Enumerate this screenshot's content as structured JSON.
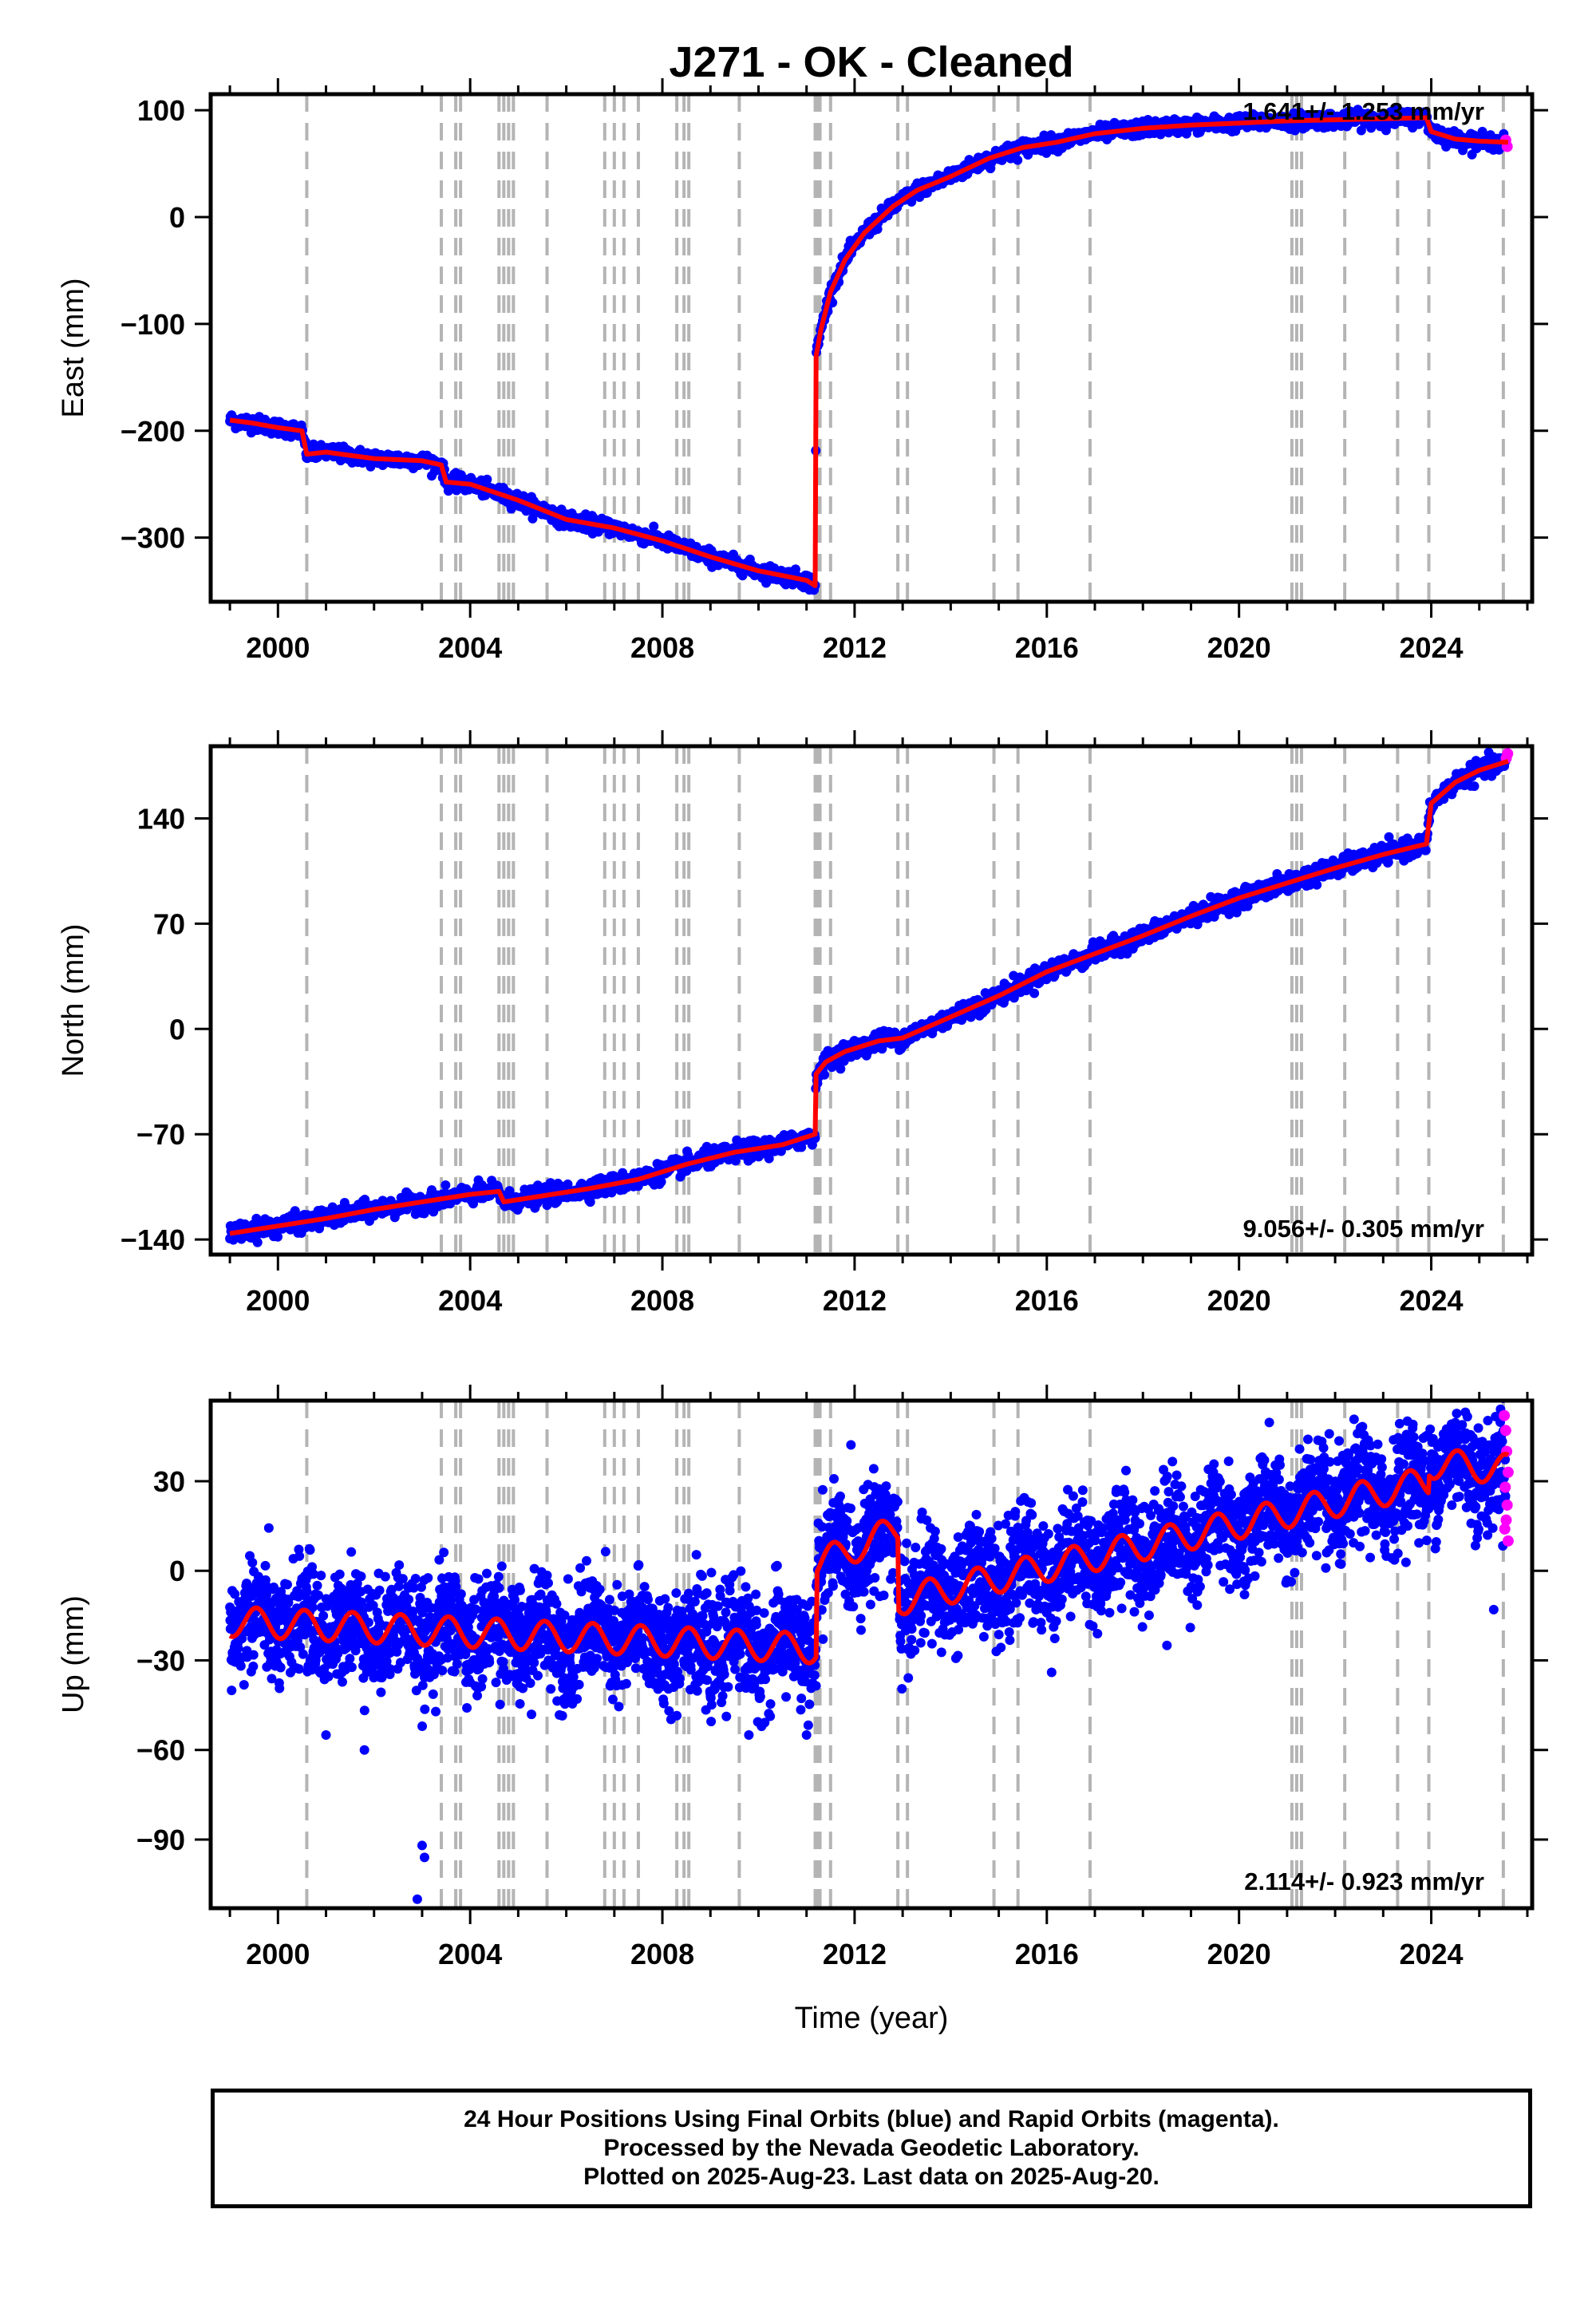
{
  "title": "J271  - OK - Cleaned",
  "footer": {
    "line1": "24 Hour Positions Using Final Orbits (blue) and Rapid Orbits (magenta).",
    "line2": "Processed by the Nevada Geodetic Laboratory.",
    "line3": "Plotted on 2025-Aug-23. Last data on 2025-Aug-20."
  },
  "colors": {
    "final": "#0000ff",
    "rapid": "#ff00ff",
    "model": "#ff0000",
    "event_lines": "#b4b4b4"
  },
  "chart_data": [
    {
      "type": "scatter",
      "panel": "east",
      "title": "",
      "xlabel": "",
      "ylabel": "East (mm)",
      "rate_text": "1.641+/- 1.253 mm/yr",
      "xlim": [
        1998.6,
        2026.1
      ],
      "ylim": [
        -360,
        115
      ],
      "xticks": [
        2000,
        2004,
        2008,
        2012,
        2016,
        2020,
        2024
      ],
      "yticks": [
        -300,
        -200,
        -100,
        0,
        100
      ],
      "event_lines": [
        2000.6,
        2003.4,
        2003.7,
        2003.8,
        2004.6,
        2004.7,
        2004.8,
        2004.9,
        2005.6,
        2006.8,
        2007.0,
        2007.2,
        2007.5,
        2008.3,
        2008.45,
        2008.55,
        2009.6,
        2011.18,
        2011.22,
        2011.28,
        2011.5,
        2012.9,
        2013.1,
        2014.9,
        2015.4,
        2016.9,
        2021.1,
        2021.2,
        2021.3,
        2022.2,
        2023.3,
        2023.95,
        2025.5
      ],
      "series": [
        {
          "points": [
            [
              1999.0,
              -190
            ],
            [
              1999.5,
              -193
            ],
            [
              2000.0,
              -197
            ],
            [
              2000.5,
              -200
            ],
            [
              2000.6,
              -222
            ],
            [
              2001.0,
              -220
            ],
            [
              2002.0,
              -226
            ],
            [
              2003.0,
              -228
            ],
            [
              2003.4,
              -232
            ],
            [
              2003.5,
              -248
            ],
            [
              2004.0,
              -250
            ],
            [
              2005.0,
              -265
            ],
            [
              2006.0,
              -283
            ],
            [
              2007.0,
              -291
            ],
            [
              2008.0,
              -303
            ],
            [
              2009.0,
              -318
            ],
            [
              2010.0,
              -331
            ],
            [
              2011.0,
              -340
            ],
            [
              2011.18,
              -345
            ],
            [
              2011.2,
              -130
            ],
            [
              2011.3,
              -105
            ],
            [
              2011.5,
              -70
            ],
            [
              2011.8,
              -40
            ],
            [
              2012.2,
              -15
            ],
            [
              2012.8,
              10
            ],
            [
              2013.3,
              25
            ],
            [
              2014.0,
              38
            ],
            [
              2014.8,
              55
            ],
            [
              2015.5,
              65
            ],
            [
              2016.2,
              70
            ],
            [
              2017.0,
              78
            ],
            [
              2018.0,
              83
            ],
            [
              2019.0,
              86
            ],
            [
              2020.0,
              88
            ],
            [
              2021.0,
              90
            ],
            [
              2022.0,
              91
            ],
            [
              2023.0,
              92
            ],
            [
              2023.9,
              93
            ],
            [
              2024.0,
              80
            ],
            [
              2024.5,
              73
            ],
            [
              2025.0,
              71
            ],
            [
              2025.6,
              70
            ]
          ]
        }
      ],
      "rapid_points": [
        [
          2025.55,
          72
        ],
        [
          2025.58,
          66
        ]
      ]
    },
    {
      "type": "scatter",
      "panel": "north",
      "title": "",
      "xlabel": "",
      "ylabel": "North (mm)",
      "rate_text": "9.056+/- 0.305 mm/yr",
      "xlim": [
        1998.6,
        2026.1
      ],
      "ylim": [
        -150,
        188
      ],
      "xticks": [
        2000,
        2004,
        2008,
        2012,
        2016,
        2020,
        2024
      ],
      "yticks": [
        -140,
        -70,
        0,
        70,
        140
      ],
      "event_lines": [
        2000.6,
        2003.4,
        2003.7,
        2003.8,
        2004.6,
        2004.7,
        2004.8,
        2004.9,
        2005.6,
        2006.8,
        2007.0,
        2007.2,
        2007.5,
        2008.3,
        2008.45,
        2008.55,
        2009.6,
        2011.18,
        2011.22,
        2011.28,
        2011.5,
        2012.9,
        2013.1,
        2014.9,
        2015.4,
        2016.9,
        2021.1,
        2021.2,
        2021.3,
        2022.2,
        2023.3,
        2023.95,
        2025.5
      ],
      "series": [
        {
          "points": [
            [
              1999.0,
              -136
            ],
            [
              2000.0,
              -131
            ],
            [
              2001.0,
              -126
            ],
            [
              2002.0,
              -120
            ],
            [
              2003.0,
              -115
            ],
            [
              2004.0,
              -110
            ],
            [
              2004.6,
              -108
            ],
            [
              2004.7,
              -115
            ],
            [
              2005.5,
              -111
            ],
            [
              2006.5,
              -106
            ],
            [
              2007.5,
              -100
            ],
            [
              2008.5,
              -90
            ],
            [
              2009.5,
              -82
            ],
            [
              2010.5,
              -77
            ],
            [
              2011.18,
              -70
            ],
            [
              2011.2,
              -30
            ],
            [
              2011.4,
              -22
            ],
            [
              2011.8,
              -15
            ],
            [
              2012.5,
              -8
            ],
            [
              2013.0,
              -6
            ],
            [
              2014.0,
              8
            ],
            [
              2015.0,
              22
            ],
            [
              2016.0,
              38
            ],
            [
              2017.0,
              50
            ],
            [
              2018.0,
              62
            ],
            [
              2019.0,
              75
            ],
            [
              2020.0,
              87
            ],
            [
              2021.0,
              97
            ],
            [
              2022.0,
              107
            ],
            [
              2023.0,
              116
            ],
            [
              2023.9,
              123
            ],
            [
              2024.0,
              150
            ],
            [
              2024.5,
              164
            ],
            [
              2025.0,
              172
            ],
            [
              2025.6,
              178
            ]
          ]
        }
      ],
      "rapid_points": [
        [
          2025.56,
          180
        ],
        [
          2025.59,
          183
        ]
      ]
    },
    {
      "type": "scatter",
      "panel": "up",
      "title": "",
      "xlabel": "Time (year)",
      "ylabel": "Up (mm)",
      "rate_text": "2.114+/- 0.923 mm/yr",
      "xlim": [
        1998.6,
        2026.1
      ],
      "ylim": [
        -113,
        57
      ],
      "xticks": [
        2000,
        2004,
        2008,
        2012,
        2016,
        2020,
        2024
      ],
      "yticks": [
        -90,
        -60,
        -30,
        0,
        30
      ],
      "event_lines": [
        2000.6,
        2003.4,
        2003.7,
        2003.8,
        2004.6,
        2004.7,
        2004.8,
        2004.9,
        2005.6,
        2006.8,
        2007.0,
        2007.2,
        2007.5,
        2008.3,
        2008.45,
        2008.55,
        2009.6,
        2011.18,
        2011.22,
        2011.28,
        2011.5,
        2012.9,
        2013.1,
        2014.9,
        2015.4,
        2016.9,
        2021.1,
        2021.2,
        2021.3,
        2022.2,
        2023.3,
        2023.95,
        2025.5
      ],
      "model": {
        "seasonal_amplitude": 5,
        "segments": [
          {
            "t0": 1999.0,
            "t1": 2011.2,
            "v0": -17,
            "v1": -26
          },
          {
            "t0": 2011.2,
            "t1": 2012.9,
            "v0": 2,
            "v1": 14
          },
          {
            "t0": 2012.9,
            "t1": 2023.95,
            "v0": -10,
            "v1": 30
          },
          {
            "t0": 2023.95,
            "t1": 2025.6,
            "v0": 36,
            "v1": 34
          }
        ]
      },
      "scatter_sd": 9,
      "outliers": [
        [
          2002.9,
          -110
        ],
        [
          2003.0,
          -92
        ],
        [
          2003.05,
          -96
        ],
        [
          2001.0,
          -55
        ],
        [
          2001.8,
          -60
        ],
        [
          2016.1,
          -34
        ],
        [
          2018.5,
          -25
        ],
        [
          2025.3,
          -13
        ],
        [
          2011.0,
          -55
        ],
        [
          2009.8,
          -55
        ]
      ],
      "rapid_points": [
        [
          2025.52,
          52
        ],
        [
          2025.55,
          47
        ],
        [
          2025.57,
          40
        ],
        [
          2025.6,
          33
        ],
        [
          2025.54,
          28
        ],
        [
          2025.58,
          22
        ],
        [
          2025.56,
          17
        ],
        [
          2025.53,
          14
        ],
        [
          2025.6,
          10
        ]
      ]
    }
  ]
}
